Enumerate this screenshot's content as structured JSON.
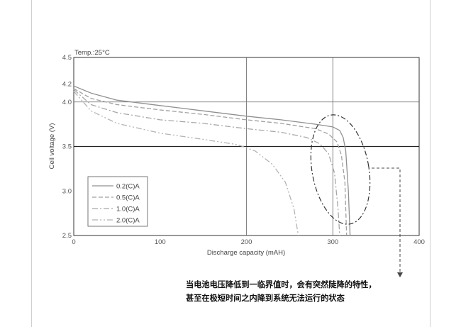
{
  "chart_data": {
    "type": "line",
    "temp_label": "Temp.:25°C",
    "xlabel": "Discharge capacity (mAH)",
    "ylabel": "Cell voltage (V)",
    "xlim": [
      0,
      400
    ],
    "ylim": [
      2.5,
      4.5
    ],
    "x_ticks": [
      0,
      100,
      200,
      300,
      400
    ],
    "y_ticks": [
      4.5,
      4.2,
      4.0,
      3.5,
      3.0,
      2.5
    ],
    "grid_x": [
      200,
      300
    ],
    "grid_y": [
      4.0,
      3.5
    ],
    "legend_position": "bottom-left",
    "series": [
      {
        "name": "0.2(C)A",
        "color": "#909090",
        "dash": "",
        "points": [
          [
            0,
            4.18
          ],
          [
            20,
            4.1
          ],
          [
            50,
            4.02
          ],
          [
            100,
            3.96
          ],
          [
            150,
            3.9
          ],
          [
            200,
            3.84
          ],
          [
            240,
            3.8
          ],
          [
            280,
            3.75
          ],
          [
            300,
            3.72
          ],
          [
            308,
            3.68
          ],
          [
            312,
            3.6
          ],
          [
            315,
            3.45
          ],
          [
            318,
            3.0
          ],
          [
            320,
            2.5
          ]
        ]
      },
      {
        "name": "0.5(C)A",
        "color": "#a0a0a0",
        "dash": "6,3",
        "points": [
          [
            0,
            4.15
          ],
          [
            20,
            4.04
          ],
          [
            50,
            3.97
          ],
          [
            100,
            3.91
          ],
          [
            150,
            3.86
          ],
          [
            200,
            3.8
          ],
          [
            240,
            3.76
          ],
          [
            280,
            3.7
          ],
          [
            295,
            3.64
          ],
          [
            305,
            3.55
          ],
          [
            310,
            3.4
          ],
          [
            314,
            3.1
          ],
          [
            316,
            2.5
          ]
        ]
      },
      {
        "name": "1.0(C)A",
        "color": "#a8a8a8",
        "dash": "8,3,2,3",
        "points": [
          [
            0,
            4.14
          ],
          [
            20,
            3.97
          ],
          [
            50,
            3.88
          ],
          [
            100,
            3.8
          ],
          [
            150,
            3.76
          ],
          [
            200,
            3.7
          ],
          [
            240,
            3.66
          ],
          [
            270,
            3.6
          ],
          [
            285,
            3.53
          ],
          [
            295,
            3.42
          ],
          [
            302,
            3.2
          ],
          [
            306,
            2.8
          ],
          [
            308,
            2.5
          ]
        ]
      },
      {
        "name": "2.0(C)A",
        "color": "#b4b4b4",
        "dash": "8,3,2,3,2,3",
        "points": [
          [
            0,
            4.12
          ],
          [
            20,
            3.9
          ],
          [
            50,
            3.76
          ],
          [
            100,
            3.65
          ],
          [
            150,
            3.58
          ],
          [
            190,
            3.52
          ],
          [
            210,
            3.45
          ],
          [
            230,
            3.3
          ],
          [
            245,
            3.1
          ],
          [
            255,
            2.8
          ],
          [
            260,
            2.5
          ]
        ]
      }
    ]
  },
  "annotation": {
    "lines": [
      "当电池电压降低到一临界值时，会有突然陡降的特性，",
      "甚至在极短时间之内降到系统无法运行的状态"
    ]
  }
}
